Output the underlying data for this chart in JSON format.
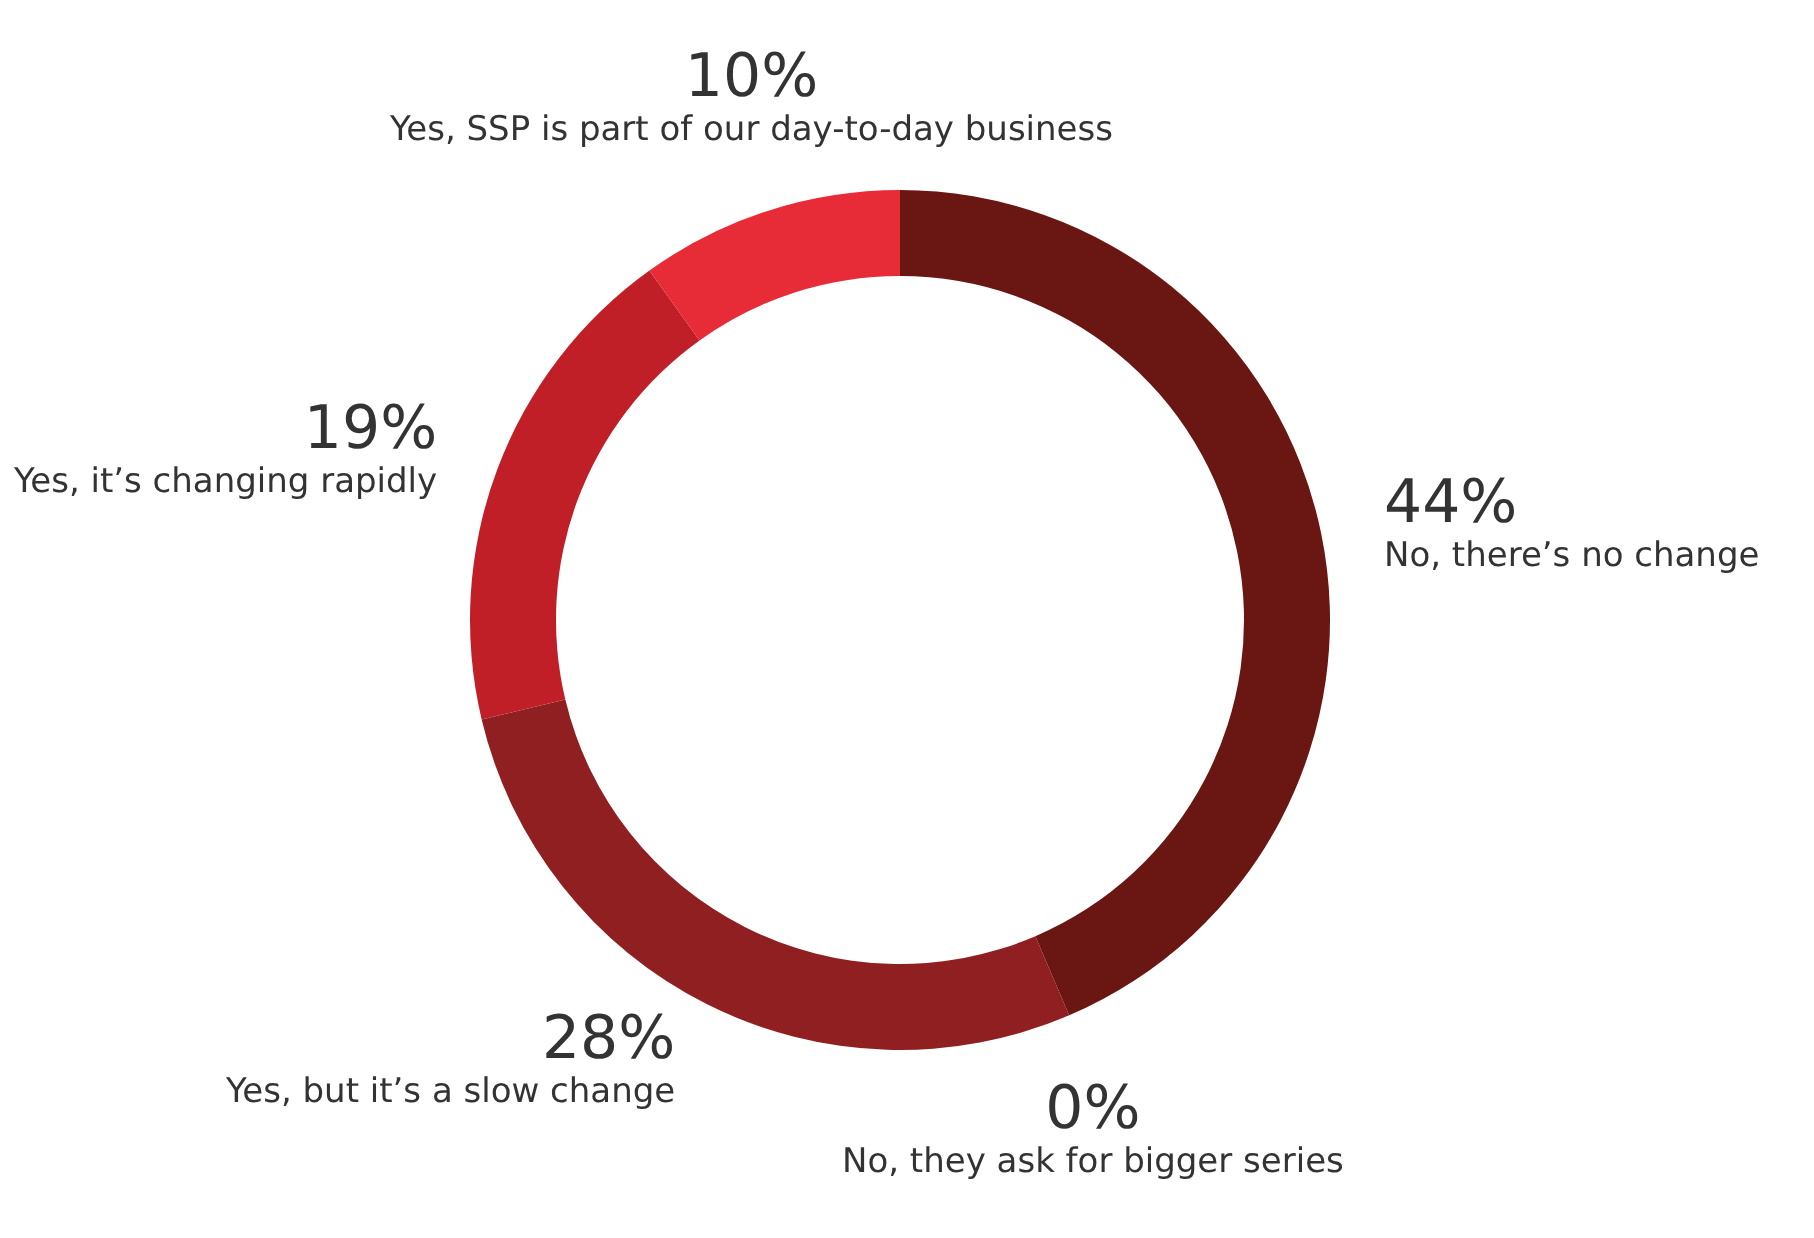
{
  "chart_data": {
    "type": "donut",
    "categories": [
      "No, there’s no change",
      "No, they ask for bigger series",
      "Yes, but it’s a slow change",
      "Yes, it’s changing rapidly",
      "Yes, SSP is part of our day-to-day business"
    ],
    "values": [
      44,
      0,
      28,
      19,
      10
    ],
    "value_labels": [
      "44%",
      "0%",
      "28%",
      "19%",
      "10%"
    ],
    "colors": [
      "#6a1613",
      "#7a1a18",
      "#8f1f20",
      "#c11f27",
      "#e82c37"
    ],
    "legend": false
  }
}
